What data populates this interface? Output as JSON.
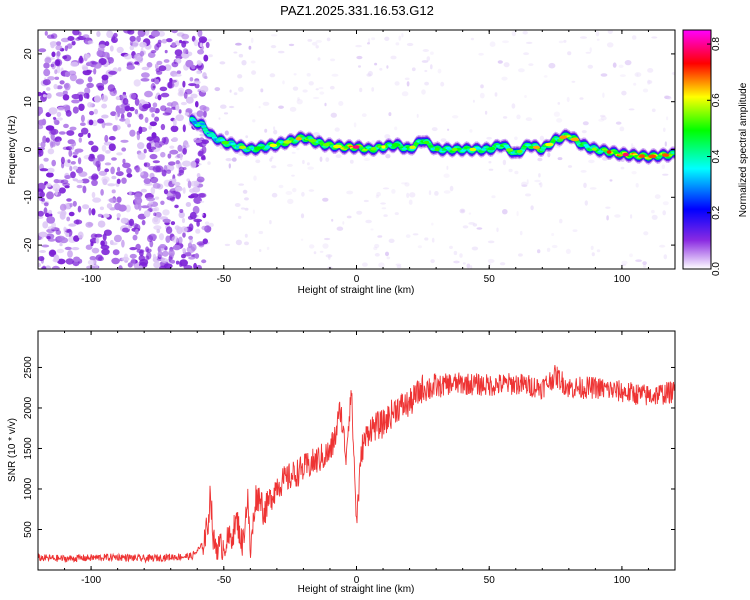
{
  "chart_data": [
    {
      "type": "heatmap",
      "title": "PAZ1.2025.331.16.53.G12",
      "xlabel": "Height of straight line (km)",
      "ylabel": "Frequency (Hz)",
      "xlim": [
        -120,
        120
      ],
      "ylim": [
        -25,
        25
      ],
      "xticks": [
        -100,
        -50,
        0,
        50,
        100
      ],
      "yticks": [
        -20,
        -10,
        0,
        10,
        20
      ],
      "colorbar": {
        "label": "Normalized spectral amplitude",
        "range": [
          0.0,
          0.85
        ],
        "ticks": [
          0.0,
          0.2,
          0.4,
          0.6,
          0.8
        ],
        "colormap": [
          "#ffffff",
          "#8a2be2",
          "#0000ff",
          "#00ffff",
          "#00ff00",
          "#ffff00",
          "#ff0000",
          "#ff00ff"
        ]
      },
      "ridge": {
        "description_x": [
          -62,
          -58,
          -55,
          -50,
          -40,
          -30,
          -20,
          -12,
          -5,
          0,
          5,
          10,
          15,
          20,
          25,
          30,
          40,
          50,
          55,
          60,
          65,
          70,
          75,
          80,
          85,
          90,
          100,
          110,
          120
        ],
        "freq_hz": [
          6,
          5,
          3,
          1.5,
          0,
          1,
          2.5,
          1,
          0.5,
          0.5,
          0,
          0.5,
          1,
          0,
          2,
          0,
          0,
          0,
          1,
          -1,
          1,
          0,
          2,
          3,
          1,
          0,
          -1,
          -1.5,
          -1
        ],
        "amplitude": [
          0.45,
          0.5,
          0.45,
          0.5,
          0.55,
          0.6,
          0.65,
          0.6,
          0.75,
          0.85,
          0.6,
          0.65,
          0.55,
          0.6,
          0.6,
          0.55,
          0.6,
          0.55,
          0.6,
          0.55,
          0.6,
          0.65,
          0.6,
          0.7,
          0.6,
          0.55,
          0.85,
          0.75,
          0.65
        ]
      },
      "noise_region_x": [
        -120,
        -60
      ]
    },
    {
      "type": "line",
      "xlabel": "Height of straight line (km)",
      "ylabel": "SNR (10 * v/v)",
      "xlim": [
        -120,
        120
      ],
      "ylim": [
        0,
        2950
      ],
      "xticks": [
        -100,
        -50,
        0,
        50,
        100
      ],
      "yticks": [
        500,
        1000,
        1500,
        2000,
        2500
      ],
      "series": [
        {
          "name": "SNR",
          "color": "#ee3333",
          "x": [
            -120,
            -110,
            -100,
            -90,
            -80,
            -70,
            -62,
            -58,
            -56,
            -55,
            -54,
            -52,
            -50,
            -47,
            -45,
            -43,
            -41,
            -40,
            -38,
            -36,
            -35,
            -30,
            -25,
            -20,
            -15,
            -10,
            -8,
            -6,
            -4,
            -2,
            0,
            2,
            5,
            10,
            15,
            20,
            25,
            30,
            35,
            40,
            50,
            60,
            70,
            75,
            80,
            90,
            100,
            110,
            120
          ],
          "y": [
            150,
            140,
            150,
            160,
            140,
            160,
            170,
            300,
            550,
            1000,
            350,
            280,
            300,
            420,
            620,
            300,
            900,
            200,
            900,
            900,
            700,
            1050,
            1150,
            1250,
            1350,
            1450,
            1650,
            2000,
            1400,
            2250,
            600,
            1500,
            1750,
            1800,
            2000,
            2050,
            2250,
            2250,
            2300,
            2300,
            2280,
            2300,
            2250,
            2400,
            2250,
            2250,
            2200,
            2150,
            2200
          ]
        }
      ]
    }
  ]
}
